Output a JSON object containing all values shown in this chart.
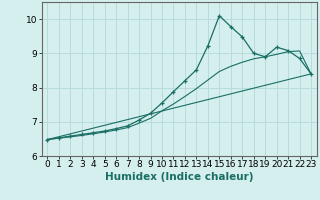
{
  "xlabel": "Humidex (Indice chaleur)",
  "ylabel": "",
  "background_color": "#d5efee",
  "grid_color": "#b8dcdc",
  "line_color": "#1a6e64",
  "xlim": [
    -0.5,
    23.5
  ],
  "ylim": [
    6.0,
    10.5
  ],
  "yticks": [
    6,
    7,
    8,
    9,
    10
  ],
  "xticks": [
    0,
    1,
    2,
    3,
    4,
    5,
    6,
    7,
    8,
    9,
    10,
    11,
    12,
    13,
    14,
    15,
    16,
    17,
    18,
    19,
    20,
    21,
    22,
    23
  ],
  "line1_x": [
    0,
    1,
    2,
    3,
    4,
    5,
    6,
    7,
    8,
    9,
    10,
    11,
    12,
    13,
    14,
    15,
    16,
    17,
    18,
    19,
    20,
    21,
    22,
    23
  ],
  "line1_y": [
    6.48,
    6.53,
    6.58,
    6.63,
    6.68,
    6.73,
    6.8,
    6.88,
    7.05,
    7.25,
    7.55,
    7.88,
    8.2,
    8.52,
    9.22,
    10.1,
    9.78,
    9.48,
    9.0,
    8.9,
    9.18,
    9.08,
    8.85,
    8.4
  ],
  "line2_x": [
    0,
    1,
    2,
    3,
    4,
    5,
    6,
    7,
    8,
    9,
    10,
    11,
    12,
    13,
    14,
    15,
    16,
    17,
    18,
    19,
    20,
    21,
    22,
    23
  ],
  "line2_y": [
    6.48,
    6.52,
    6.56,
    6.6,
    6.65,
    6.7,
    6.76,
    6.83,
    6.96,
    7.1,
    7.32,
    7.52,
    7.74,
    7.97,
    8.22,
    8.47,
    8.62,
    8.74,
    8.84,
    8.9,
    8.97,
    9.05,
    9.07,
    8.4
  ],
  "line3_x": [
    0,
    23
  ],
  "line3_y": [
    6.48,
    8.4
  ],
  "tick_fontsize": 6.5,
  "label_fontsize": 7.5
}
